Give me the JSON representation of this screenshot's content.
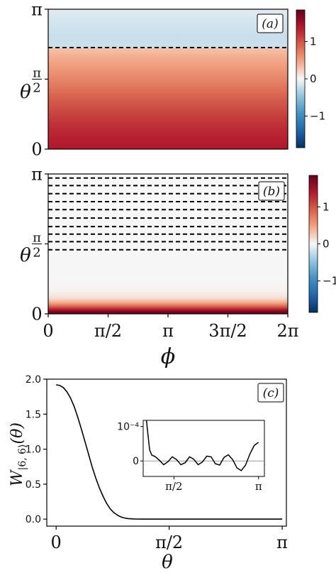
{
  "chart_data": [
    {
      "type": "heatmap",
      "panel": "(a)",
      "xlim": [
        0,
        6.283
      ],
      "ylim": [
        0,
        3.1416
      ],
      "ylabel": "θ",
      "yticks": [
        {
          "value": 0,
          "label": "0"
        },
        {
          "value": 1.5708,
          "label": "π/2"
        },
        {
          "value": 3.1416,
          "label": "π"
        }
      ],
      "colorbar": {
        "range": [
          -1.85,
          1.85
        ],
        "ticks": [
          {
            "value": 1,
            "label": "1"
          },
          {
            "value": 0,
            "label": "0"
          },
          {
            "value": -1,
            "label": "−1"
          }
        ],
        "colormap": "RdBu_r"
      },
      "profile": {
        "theta": [
          0,
          0.3,
          0.6,
          0.9,
          1.2,
          1.5,
          1.8,
          2.1,
          2.27,
          2.29,
          2.5,
          2.8,
          3.1416
        ],
        "value": [
          1.4,
          1.32,
          1.2,
          1.05,
          0.9,
          0.72,
          0.55,
          0.4,
          0.3,
          -0.2,
          -0.22,
          -0.18,
          -0.1
        ]
      },
      "nodal_lines_theta": [
        2.28
      ]
    },
    {
      "type": "heatmap",
      "panel": "(b)",
      "xlim": [
        0,
        6.283
      ],
      "ylim": [
        0,
        3.1416
      ],
      "xlabel": "ϕ",
      "ylabel": "θ",
      "xticks": [
        {
          "value": 0,
          "label": "0"
        },
        {
          "value": 1.5708,
          "label": "π/2"
        },
        {
          "value": 3.1416,
          "label": "π"
        },
        {
          "value": 4.7124,
          "label": "3π/2"
        },
        {
          "value": 6.2832,
          "label": "2π"
        }
      ],
      "yticks": [
        {
          "value": 0,
          "label": "0"
        },
        {
          "value": 1.5708,
          "label": "π/2"
        },
        {
          "value": 3.1416,
          "label": "π"
        }
      ],
      "colorbar": {
        "range": [
          -1.85,
          1.85
        ],
        "ticks": [
          {
            "value": 1,
            "label": "1"
          },
          {
            "value": 0,
            "label": "0"
          },
          {
            "value": -1,
            "label": "−1"
          }
        ],
        "colormap": "RdBu_r"
      },
      "profile": {
        "theta": [
          0,
          0.05,
          0.1,
          0.15,
          0.2,
          0.25,
          0.3,
          0.35,
          0.4,
          0.5,
          0.6,
          0.8,
          3.1416
        ],
        "value": [
          1.85,
          1.7,
          1.35,
          1.0,
          0.7,
          0.45,
          0.28,
          0.16,
          0.09,
          0.04,
          0.02,
          0.005,
          0.0
        ]
      },
      "nodal_lines_theta": [
        1.44,
        1.62,
        1.79,
        1.96,
        2.15,
        2.34,
        2.52,
        2.7,
        2.88,
        3.05
      ]
    },
    {
      "type": "line",
      "panel": "(c)",
      "xlabel": "θ",
      "ylabel": "W|6,6⟩(θ)",
      "xlim": [
        -0.13,
        3.2
      ],
      "ylim": [
        -0.1,
        2.0
      ],
      "xticks": [
        {
          "value": 0,
          "label": "0"
        },
        {
          "value": 1.5708,
          "label": "π/2"
        },
        {
          "value": 3.1416,
          "label": "π"
        }
      ],
      "yticks": [
        {
          "value": 0.0,
          "label": "0.0"
        },
        {
          "value": 0.5,
          "label": "0.5"
        },
        {
          "value": 1.0,
          "label": "1.0"
        },
        {
          "value": 1.5,
          "label": "1.5"
        },
        {
          "value": 2.0,
          "label": "2.0"
        }
      ],
      "series": [
        {
          "x": [
            0,
            0.05,
            0.1,
            0.15,
            0.2,
            0.25,
            0.3,
            0.35,
            0.4,
            0.45,
            0.5,
            0.55,
            0.6,
            0.65,
            0.7,
            0.75,
            0.8,
            0.85,
            0.9,
            0.95,
            1.0,
            1.05,
            1.1,
            1.2,
            1.4,
            1.6,
            2.0,
            2.5,
            3.1416
          ],
          "y": [
            1.92,
            1.91,
            1.88,
            1.82,
            1.73,
            1.61,
            1.46,
            1.29,
            1.11,
            0.93,
            0.75,
            0.59,
            0.45,
            0.33,
            0.23,
            0.15,
            0.095,
            0.057,
            0.032,
            0.017,
            0.008,
            0.004,
            0.0015,
            0.0004,
            0.0001,
            0.0,
            0.0,
            0.0,
            0.0
          ]
        }
      ],
      "inset": {
        "xlim": [
          1.0,
          3.25
        ],
        "ylim": [
          -4.5e-05,
          0.000118
        ],
        "xticks": [
          {
            "value": 1.5708,
            "label": "π/2"
          },
          {
            "value": 3.1416,
            "label": "π"
          }
        ],
        "yticks": [
          {
            "value": 0,
            "label": "0"
          },
          {
            "value": 0.0001,
            "label": "10⁻⁴"
          }
        ],
        "baseline": 0,
        "series": [
          {
            "x": [
              1.06,
              1.09,
              1.12,
              1.16,
              1.22,
              1.3,
              1.38,
              1.46,
              1.54,
              1.62,
              1.7,
              1.78,
              1.86,
              1.94,
              2.02,
              2.1,
              2.18,
              2.26,
              2.34,
              2.42,
              2.5,
              2.58,
              2.66,
              2.74,
              2.82,
              2.9,
              2.98,
              3.06,
              3.14
            ],
            "y": [
              0.000118,
              7.5e-05,
              3.2e-05,
              1.7e-05,
              1.3e-05,
              2e-06,
              -1.1e-05,
              -2e-06,
              1.2e-05,
              4e-06,
              -1.1e-05,
              -5e-06,
              1.2e-05,
              5e-06,
              -1.1e-05,
              -3e-06,
              1.4e-05,
              1.2e-05,
              -8e-06,
              -1.2e-05,
              1e-05,
              1.8e-05,
              4e-06,
              -2e-05,
              -2.8e-05,
              -1.2e-05,
              2e-05,
              4.5e-05,
              5.4e-05
            ]
          }
        ]
      }
    }
  ],
  "labels": {
    "a": "(a)",
    "b": "(b)",
    "c": "(c)",
    "theta": "θ",
    "phi": "ϕ",
    "ylabel_c_main": "W",
    "ylabel_c_sub": "|6, 6⟩",
    "ylabel_c_arg": "(θ)"
  },
  "colors": {
    "line": "#000000",
    "dashed": "#000000",
    "axis": "#000000",
    "zero_line": "#999999"
  }
}
